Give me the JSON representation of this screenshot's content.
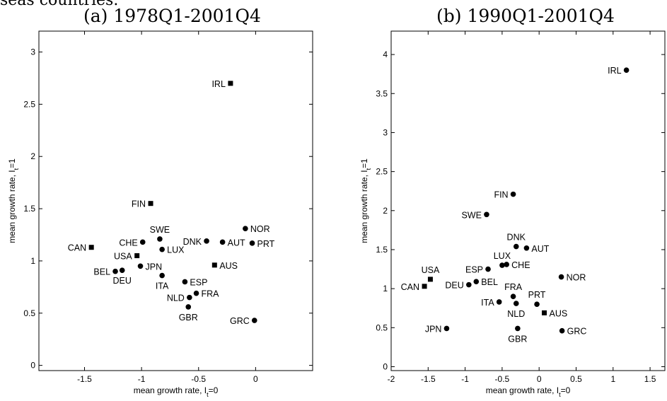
{
  "caption_fragment": "seas countries.",
  "chart_data": [
    {
      "type": "scatter",
      "title": "(a) 1978Q1-2001Q4",
      "xlabel": "mean growth rate, I",
      "xlabel_sub": "t",
      "xlabel_suffix": "=0",
      "ylabel": "mean growth rate, I",
      "ylabel_sub": "t",
      "ylabel_suffix": "=1",
      "xlim": [
        -1.9,
        0.5
      ],
      "ylim": [
        -0.05,
        3.2
      ],
      "xticks": [
        -1.5,
        -1,
        -0.5,
        0
      ],
      "xtick_labels": [
        "-1.5",
        "-1",
        "-0.5",
        "0"
      ],
      "yticks": [
        0,
        0.5,
        1,
        1.5,
        2,
        2.5,
        3
      ],
      "ytick_labels": [
        "0",
        "0.5",
        "1",
        "1.5",
        "2",
        "2.5",
        "3"
      ],
      "grid": false,
      "points": [
        {
          "label": "IRL",
          "x": -0.22,
          "y": 2.7,
          "marker": "square",
          "pos": "left"
        },
        {
          "label": "FIN",
          "x": -0.92,
          "y": 1.55,
          "marker": "square",
          "pos": "left"
        },
        {
          "label": "SWE",
          "x": -0.84,
          "y": 1.21,
          "marker": "circle",
          "pos": "above"
        },
        {
          "label": "CHE",
          "x": -0.99,
          "y": 1.18,
          "marker": "circle",
          "pos": "left"
        },
        {
          "label": "LUX",
          "x": -0.82,
          "y": 1.11,
          "marker": "circle",
          "pos": "right"
        },
        {
          "label": "DNK",
          "x": -0.43,
          "y": 1.19,
          "marker": "circle",
          "pos": "left"
        },
        {
          "label": "AUT",
          "x": -0.29,
          "y": 1.18,
          "marker": "circle",
          "pos": "right"
        },
        {
          "label": "NOR",
          "x": -0.09,
          "y": 1.31,
          "marker": "circle",
          "pos": "right"
        },
        {
          "label": "PRT",
          "x": -0.03,
          "y": 1.17,
          "marker": "circle",
          "pos": "right"
        },
        {
          "label": "CAN",
          "x": -1.44,
          "y": 1.13,
          "marker": "square",
          "pos": "left"
        },
        {
          "label": "USA",
          "x": -1.04,
          "y": 1.05,
          "marker": "square",
          "pos": "left"
        },
        {
          "label": "BEL",
          "x": -1.23,
          "y": 0.9,
          "marker": "circle",
          "pos": "left"
        },
        {
          "label": "DEU",
          "x": -1.17,
          "y": 0.91,
          "marker": "circle",
          "pos": "below"
        },
        {
          "label": "JPN",
          "x": -1.01,
          "y": 0.95,
          "marker": "circle",
          "pos": "right"
        },
        {
          "label": "ITA",
          "x": -0.82,
          "y": 0.86,
          "marker": "circle",
          "pos": "below"
        },
        {
          "label": "AUS",
          "x": -0.36,
          "y": 0.96,
          "marker": "square",
          "pos": "right"
        },
        {
          "label": "ESP",
          "x": -0.62,
          "y": 0.8,
          "marker": "circle",
          "pos": "right"
        },
        {
          "label": "FRA",
          "x": -0.52,
          "y": 0.69,
          "marker": "circle",
          "pos": "right"
        },
        {
          "label": "NLD",
          "x": -0.58,
          "y": 0.65,
          "marker": "circle",
          "pos": "left"
        },
        {
          "label": "GBR",
          "x": -0.59,
          "y": 0.56,
          "marker": "circle",
          "pos": "below"
        },
        {
          "label": "GRC",
          "x": -0.01,
          "y": 0.43,
          "marker": "circle",
          "pos": "left"
        }
      ]
    },
    {
      "type": "scatter",
      "title": "(b) 1990Q1-2001Q4",
      "xlabel": "mean growth rate, I",
      "xlabel_sub": "t",
      "xlabel_suffix": "=0",
      "ylabel": "mean growth rate, I",
      "ylabel_sub": "t",
      "ylabel_suffix": "=1",
      "xlim": [
        -2,
        1.7
      ],
      "ylim": [
        -0.05,
        4.3
      ],
      "xticks": [
        -2,
        -1.5,
        -1,
        -0.5,
        0,
        0.5,
        1,
        1.5
      ],
      "xtick_labels": [
        "-2",
        "-1.5",
        "-1",
        "-0.5",
        "0",
        "0.5",
        "1",
        "1.5"
      ],
      "yticks": [
        0,
        0.5,
        1,
        1.5,
        2,
        2.5,
        3,
        3.5,
        4
      ],
      "ytick_labels": [
        "0",
        "0.5",
        "1",
        "1.5",
        "2",
        "2.5",
        "3",
        "3.5",
        "4"
      ],
      "grid": false,
      "points": [
        {
          "label": "IRL",
          "x": 1.18,
          "y": 3.8,
          "marker": "circle",
          "pos": "left"
        },
        {
          "label": "FIN",
          "x": -0.35,
          "y": 2.21,
          "marker": "circle",
          "pos": "left"
        },
        {
          "label": "SWE",
          "x": -0.71,
          "y": 1.95,
          "marker": "circle",
          "pos": "left"
        },
        {
          "label": "DNK",
          "x": -0.31,
          "y": 1.54,
          "marker": "circle",
          "pos": "above"
        },
        {
          "label": "AUT",
          "x": -0.17,
          "y": 1.52,
          "marker": "circle",
          "pos": "right"
        },
        {
          "label": "LUX",
          "x": -0.5,
          "y": 1.3,
          "marker": "circle",
          "pos": "above"
        },
        {
          "label": "CHE",
          "x": -0.44,
          "y": 1.31,
          "marker": "circle",
          "pos": "right"
        },
        {
          "label": "ESP",
          "x": -0.69,
          "y": 1.25,
          "marker": "circle",
          "pos": "left"
        },
        {
          "label": "USA",
          "x": -1.47,
          "y": 1.12,
          "marker": "square",
          "pos": "above"
        },
        {
          "label": "CAN",
          "x": -1.55,
          "y": 1.03,
          "marker": "square",
          "pos": "left"
        },
        {
          "label": "DEU",
          "x": -0.95,
          "y": 1.05,
          "marker": "circle",
          "pos": "left"
        },
        {
          "label": "BEL",
          "x": -0.85,
          "y": 1.09,
          "marker": "circle",
          "pos": "right"
        },
        {
          "label": "FRA",
          "x": -0.35,
          "y": 0.9,
          "marker": "circle",
          "pos": "above"
        },
        {
          "label": "ITA",
          "x": -0.54,
          "y": 0.83,
          "marker": "circle",
          "pos": "left"
        },
        {
          "label": "NLD",
          "x": -0.31,
          "y": 0.81,
          "marker": "circle",
          "pos": "below"
        },
        {
          "label": "NOR",
          "x": 0.3,
          "y": 1.15,
          "marker": "circle",
          "pos": "right"
        },
        {
          "label": "PRT",
          "x": -0.03,
          "y": 0.8,
          "marker": "circle",
          "pos": "above"
        },
        {
          "label": "AUS",
          "x": 0.07,
          "y": 0.69,
          "marker": "square",
          "pos": "right"
        },
        {
          "label": "GBR",
          "x": -0.29,
          "y": 0.49,
          "marker": "circle",
          "pos": "below"
        },
        {
          "label": "JPN",
          "x": -1.25,
          "y": 0.49,
          "marker": "circle",
          "pos": "left"
        },
        {
          "label": "GRC",
          "x": 0.31,
          "y": 0.46,
          "marker": "circle",
          "pos": "right"
        }
      ]
    }
  ]
}
